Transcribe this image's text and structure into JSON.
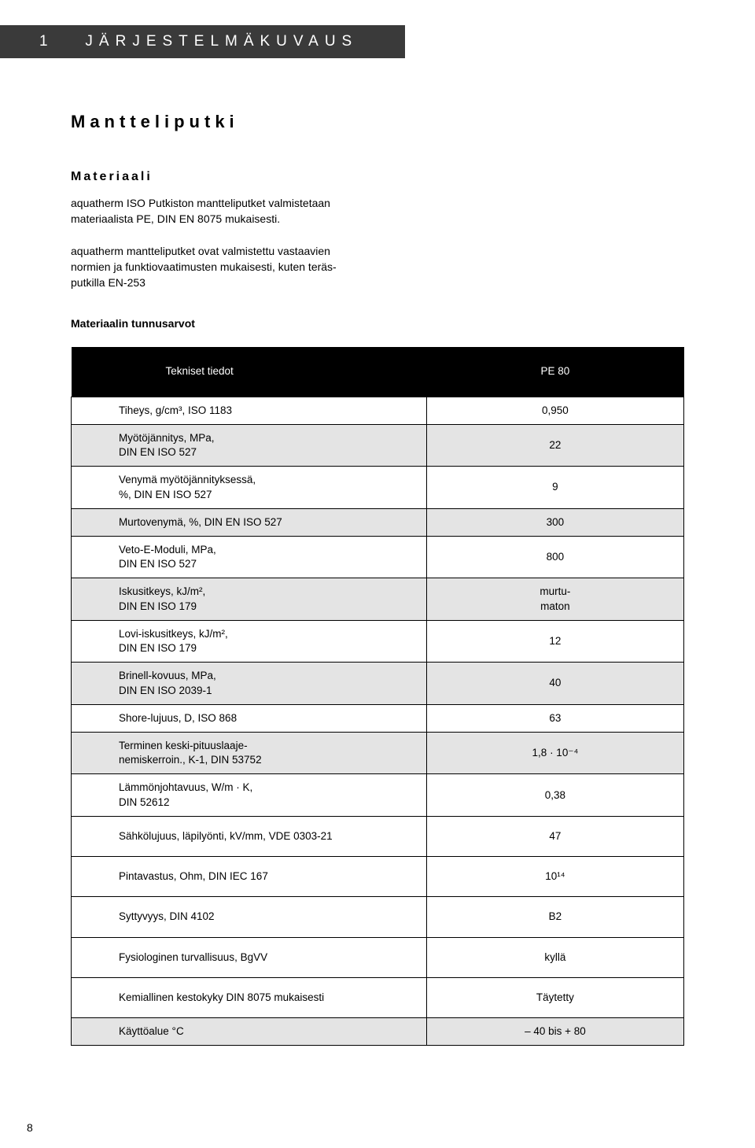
{
  "section": {
    "number": "1",
    "title": "JÄRJESTELMÄKUVAUS"
  },
  "product": "Mantteliputki",
  "material_heading": "Materiaali",
  "material_para1": "aquatherm ISO Putkiston mantteliputket valmistetaan materiaalista PE, DIN EN 8075 mukaisesti.",
  "material_para2": "aquatherm mantteliputket ovat valmistettu vastaavien normien ja funktiovaatimusten mukaisesti, kuten teräs­putkilla EN-253",
  "table_title": "Materiaalin tunnusarvot",
  "header": {
    "left": "Tekniset tiedot",
    "right": "PE 80"
  },
  "rows": [
    {
      "shade": false,
      "left": "Tiheys, g/cm³, ISO 1183",
      "right": "0,950"
    },
    {
      "shade": true,
      "left": "Myötöjännitys, MPa,\nDIN EN ISO 527",
      "right": "22"
    },
    {
      "shade": false,
      "left": "Venymä myötöjännityksessä,\n%, DIN EN ISO 527",
      "right": "9"
    },
    {
      "shade": true,
      "left": "Murtovenymä, %, DIN EN ISO 527",
      "right": "300"
    },
    {
      "shade": false,
      "left": "Veto-E-Moduli, MPa,\nDIN EN ISO 527",
      "right": "800"
    },
    {
      "shade": true,
      "left": "Iskusitkeys, kJ/m²,\nDIN EN ISO 179",
      "right": "murtu-\nmaton"
    },
    {
      "shade": false,
      "left": "Lovi-iskusitkeys, kJ/m²,\nDIN EN ISO 179",
      "right": "12"
    },
    {
      "shade": true,
      "left": "Brinell-kovuus, MPa,\nDIN EN ISO 2039-1",
      "right": "40"
    },
    {
      "shade": false,
      "left": "Shore-lujuus, D, ISO 868",
      "right": "63"
    },
    {
      "shade": true,
      "left": "Terminen keski-pituuslaaje-\nnemiskerroin., K-1, DIN 53752",
      "right": "1,8 · 10⁻⁴"
    },
    {
      "shade": false,
      "left": "Lämmönjohtavuus, W/m · K,\nDIN 52612",
      "right": "0,38"
    },
    {
      "shade": false,
      "tall": true,
      "left": "Sähkölujuus, läpilyönti, kV/mm, VDE 0303-21",
      "right": "47"
    },
    {
      "shade": false,
      "tall": true,
      "left": "Pintavastus, Ohm, DIN IEC 167",
      "right": "10¹⁴"
    },
    {
      "shade": false,
      "tall": true,
      "left": "Syttyvyys, DIN 4102",
      "right": "B2"
    },
    {
      "shade": false,
      "tall": true,
      "left": "Fysiologinen turvallisuus, BgVV",
      "right": "kyllä"
    },
    {
      "shade": false,
      "tall": true,
      "left": "Kemiallinen kestokyky DIN 8075 mukaisesti",
      "right": "Täytetty"
    },
    {
      "shade": true,
      "left": "Käyttöalue °C",
      "right": "– 40 bis + 80"
    }
  ],
  "colors": {
    "tab_bg": "#3a3a3a",
    "header_bg": "#000000",
    "shade_bg": "#e4e4e4",
    "text": "#000000",
    "white": "#ffffff"
  },
  "page_number": "8"
}
